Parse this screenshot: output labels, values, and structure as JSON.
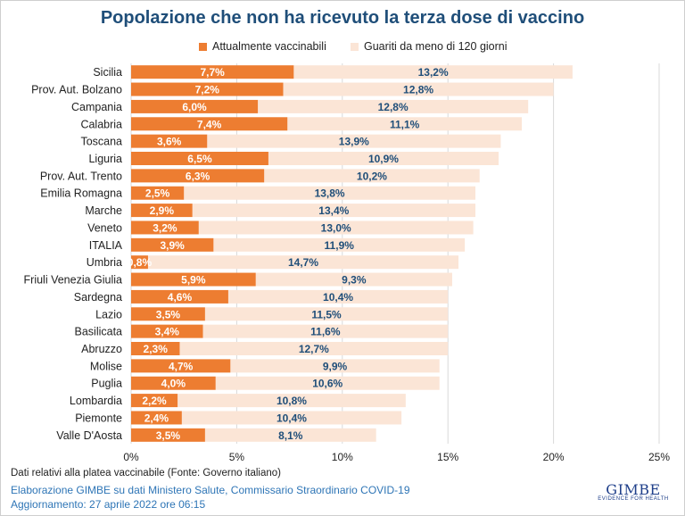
{
  "title": "Popolazione che non ha ricevuto la terza dose di vaccino",
  "legend": {
    "series_a": "Attualmente vaccinabili",
    "series_b": "Guariti da meno di 120 giorni"
  },
  "footnote": "Dati relativi alla platea vaccinabile (Fonte: Governo italiano)",
  "credit_line1": "Elaborazione GIMBE su dati Ministero Salute, Commissario Straordinario COVID-19",
  "credit_line2": "Aggiornamento: 27 aprile 2022 ore 06:15",
  "logo": {
    "main": "GIMBE",
    "sub": "EVIDENCE FOR HEALTH"
  },
  "colors": {
    "series_a": "#ed7d31",
    "series_b": "#fbe5d6",
    "label_b": "#1f4e79",
    "grid": "#d9d9d9"
  },
  "chart_data": {
    "type": "bar",
    "orientation": "horizontal",
    "stacked": true,
    "categories": [
      "Sicilia",
      "Prov. Aut. Bolzano",
      "Campania",
      "Calabria",
      "Toscana",
      "Liguria",
      "Prov. Aut. Trento",
      "Emilia Romagna",
      "Marche",
      "Veneto",
      "ITALIA",
      "Umbria",
      "Friuli Venezia Giulia",
      "Sardegna",
      "Lazio",
      "Basilicata",
      "Abruzzo",
      "Molise",
      "Puglia",
      "Lombardia",
      "Piemonte",
      "Valle D'Aosta"
    ],
    "series": [
      {
        "name": "Attualmente vaccinabili",
        "values": [
          7.7,
          7.2,
          6.0,
          7.4,
          3.6,
          6.5,
          6.3,
          2.5,
          2.9,
          3.2,
          3.9,
          0.8,
          5.9,
          4.6,
          3.5,
          3.4,
          2.3,
          4.7,
          4.0,
          2.2,
          2.4,
          3.5
        ],
        "labels": [
          "7,7%",
          "7,2%",
          "6,0%",
          "7,4%",
          "3,6%",
          "6,5%",
          "6,3%",
          "2,5%",
          "2,9%",
          "3,2%",
          "3,9%",
          "0,8%",
          "5,9%",
          "4,6%",
          "3,5%",
          "3,4%",
          "2,3%",
          "4,7%",
          "4,0%",
          "2,2%",
          "2,4%",
          "3,5%"
        ]
      },
      {
        "name": "Guariti da meno di 120 giorni",
        "values": [
          13.2,
          12.8,
          12.8,
          11.1,
          13.9,
          10.9,
          10.2,
          13.8,
          13.4,
          13.0,
          11.9,
          14.7,
          9.3,
          10.4,
          11.5,
          11.6,
          12.7,
          9.9,
          10.6,
          10.8,
          10.4,
          8.1
        ],
        "labels": [
          "13,2%",
          "12,8%",
          "12,8%",
          "11,1%",
          "13,9%",
          "10,9%",
          "10,2%",
          "13,8%",
          "13,4%",
          "13,0%",
          "11,9%",
          "14,7%",
          "9,3%",
          "10,4%",
          "11,5%",
          "11,6%",
          "12,7%",
          "9,9%",
          "10,6%",
          "10,8%",
          "10,4%",
          "8,1%"
        ]
      }
    ],
    "x_ticks": [
      "0%",
      "5%",
      "10%",
      "15%",
      "20%",
      "25%"
    ],
    "xlim": [
      0,
      25
    ],
    "grid": true,
    "legend_position": "top"
  }
}
